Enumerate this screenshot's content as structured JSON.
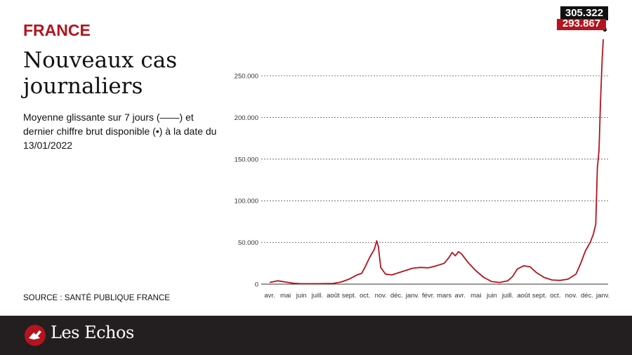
{
  "header": {
    "country": "FRANCE",
    "title": "Nouveaux cas journaliers",
    "subtitle": "Moyenne glissante sur 7 jours (——) et dernier chiffre brut disponible (•) à la date du 13/01/2022"
  },
  "source": "SOURCE : SANTÉ PUBLIQUE FRANCE",
  "brand": {
    "name": "Les Echos"
  },
  "callouts": {
    "raw_value": "305.322",
    "avg_value": "293.867"
  },
  "colors": {
    "accent": "#b4141e",
    "footer": "#231f20",
    "grid": "#555555"
  },
  "chart_data": {
    "type": "line",
    "y_ticks": [
      0,
      50000,
      100000,
      150000,
      200000,
      250000
    ],
    "y_tick_labels": [
      "0",
      "50.000",
      "100.000",
      "150.000",
      "200.000",
      "250.000"
    ],
    "ylim": [
      0,
      310000
    ],
    "grid": true,
    "x_tick_labels": [
      "avr.",
      "mai",
      "juin",
      "juill.",
      "août",
      "sept.",
      "oct.",
      "nov.",
      "déc.",
      "janv.",
      "févr.",
      "mars",
      "avr.",
      "mai",
      "juin",
      "juill.",
      "août",
      "sept.",
      "oct.",
      "nov.",
      "déc.",
      "janv."
    ],
    "series": [
      {
        "values_by_month": [
          [
            0,
            2000
          ],
          [
            0.5,
            4000
          ],
          [
            1,
            2500
          ],
          [
            1.5,
            1000
          ],
          [
            2,
            500
          ],
          [
            3,
            500
          ],
          [
            4,
            800
          ],
          [
            4.5,
            2500
          ],
          [
            5,
            6000
          ],
          [
            5.5,
            11000
          ],
          [
            5.8,
            13000
          ],
          [
            6,
            20000
          ],
          [
            6.3,
            32000
          ],
          [
            6.6,
            42000
          ],
          [
            6.75,
            52000
          ],
          [
            6.85,
            45000
          ],
          [
            7,
            20000
          ],
          [
            7.3,
            12000
          ],
          [
            7.7,
            11000
          ],
          [
            8,
            13000
          ],
          [
            8.5,
            16000
          ],
          [
            9,
            19000
          ],
          [
            9.5,
            20000
          ],
          [
            10,
            19500
          ],
          [
            10.5,
            22000
          ],
          [
            11,
            25000
          ],
          [
            11.3,
            32000
          ],
          [
            11.5,
            38000
          ],
          [
            11.7,
            34000
          ],
          [
            11.9,
            39000
          ],
          [
            12.1,
            36000
          ],
          [
            12.5,
            26000
          ],
          [
            13,
            16000
          ],
          [
            13.5,
            8000
          ],
          [
            14,
            3000
          ],
          [
            14.5,
            2000
          ],
          [
            15,
            4000
          ],
          [
            15.3,
            9000
          ],
          [
            15.6,
            18000
          ],
          [
            16,
            22000
          ],
          [
            16.4,
            21000
          ],
          [
            16.8,
            14000
          ],
          [
            17.3,
            8000
          ],
          [
            17.8,
            5000
          ],
          [
            18.3,
            4500
          ],
          [
            18.8,
            6000
          ],
          [
            19.3,
            12000
          ],
          [
            19.6,
            25000
          ],
          [
            19.9,
            40000
          ],
          [
            20.2,
            50000
          ],
          [
            20.4,
            60000
          ],
          [
            20.55,
            72000
          ],
          [
            20.65,
            140000
          ],
          [
            20.75,
            160000
          ],
          [
            20.85,
            220000
          ],
          [
            20.95,
            270000
          ],
          [
            21.02,
            293867
          ]
        ],
        "last_raw_value": 305322,
        "last_raw_x": 21.12
      }
    ]
  }
}
